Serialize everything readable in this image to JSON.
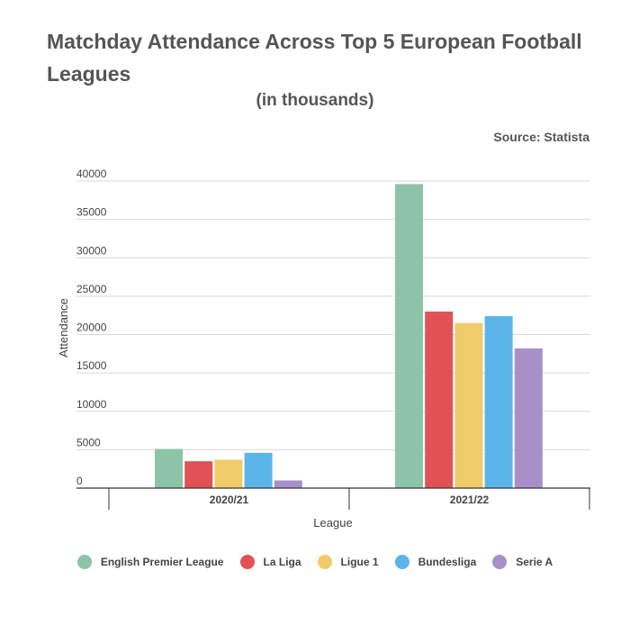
{
  "title": "Matchday Attendance Across Top 5 European Football Leagues",
  "subtitle": "(in thousands)",
  "source": "Source: Statista",
  "chart_data": {
    "type": "bar",
    "categories": [
      "2020/21",
      "2021/22"
    ],
    "series": [
      {
        "name": "English Premier League",
        "color": "#8dc3a7",
        "values": [
          5100,
          39600
        ]
      },
      {
        "name": "La Liga",
        "color": "#e05256",
        "values": [
          3500,
          23000
        ]
      },
      {
        "name": "Ligue 1",
        "color": "#f0cb69",
        "values": [
          3700,
          21500
        ]
      },
      {
        "name": "Bundesliga",
        "color": "#5bb5e8",
        "values": [
          4600,
          22400
        ]
      },
      {
        "name": "Serie A",
        "color": "#a98fc8",
        "values": [
          1000,
          18200
        ]
      }
    ],
    "xlabel": "League",
    "ylabel": "Attendance",
    "ylim": [
      0,
      40000
    ],
    "yticks": [
      "0",
      "5000",
      "10000",
      "15000",
      "20000",
      "25000",
      "30000",
      "35000",
      "40000"
    ],
    "grid": true,
    "legend": "bottom"
  }
}
